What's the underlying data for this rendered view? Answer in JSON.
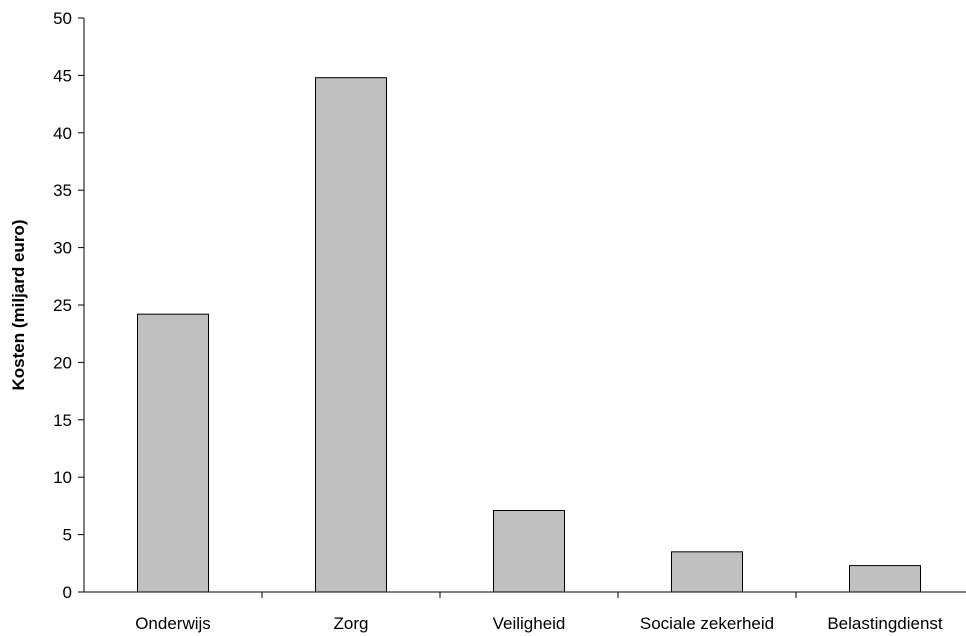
{
  "chart_data": {
    "type": "bar",
    "title": "",
    "xlabel": "",
    "ylabel": "Kosten (miljard euro)",
    "categories": [
      "Onderwijs",
      "Zorg",
      "Veiligheid",
      "Sociale zekerheid",
      "Belastingdienst"
    ],
    "values": [
      24.2,
      44.8,
      7.1,
      3.5,
      2.3
    ],
    "ylim": [
      0,
      50
    ],
    "yticks": [
      0,
      5,
      10,
      15,
      20,
      25,
      30,
      35,
      40,
      45,
      50
    ],
    "grid": false,
    "bar_color": "#c0c0c0",
    "bar_stroke": "#000000"
  }
}
